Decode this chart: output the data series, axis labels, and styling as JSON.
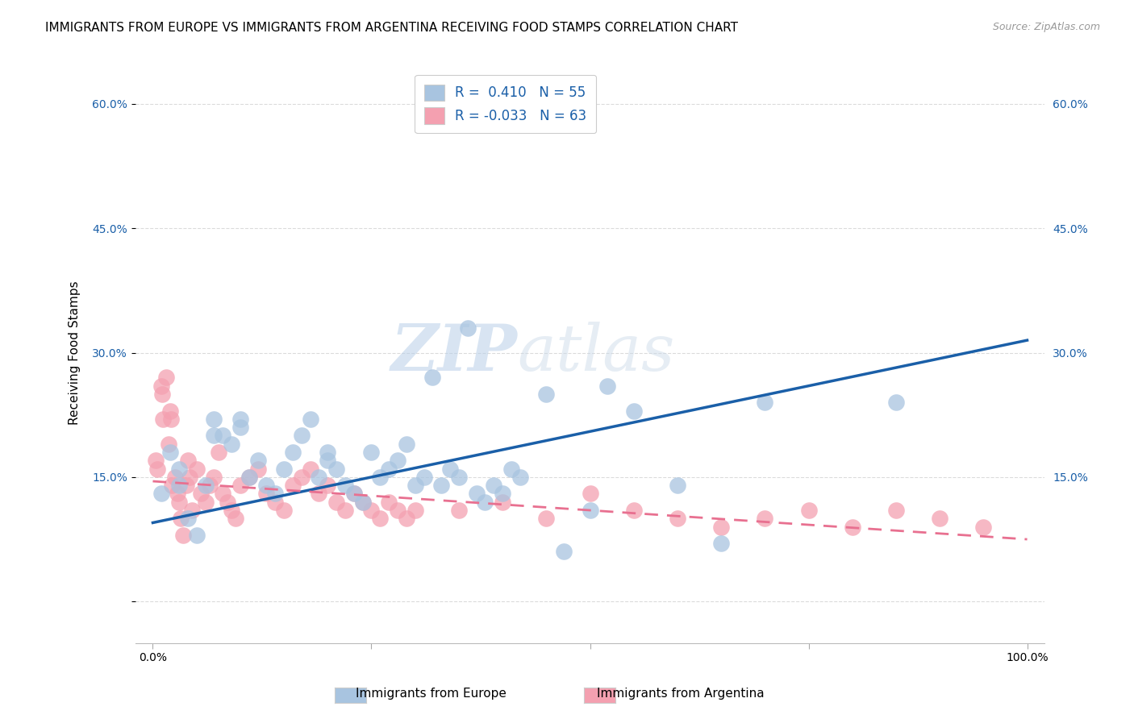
{
  "title": "IMMIGRANTS FROM EUROPE VS IMMIGRANTS FROM ARGENTINA RECEIVING FOOD STAMPS CORRELATION CHART",
  "source": "Source: ZipAtlas.com",
  "ylabel": "Receiving Food Stamps",
  "xlim": [
    -2,
    102
  ],
  "ylim": [
    -5,
    65
  ],
  "europe_R": 0.41,
  "europe_N": 55,
  "argentina_R": -0.033,
  "argentina_N": 63,
  "europe_color": "#a8c4e0",
  "argentina_color": "#f4a0b0",
  "europe_line_color": "#1a5fa8",
  "argentina_line_color": "#e87090",
  "background_color": "#ffffff",
  "grid_color": "#cccccc",
  "watermark_zip": "ZIP",
  "watermark_atlas": "atlas",
  "title_fontsize": 11,
  "source_fontsize": 9,
  "europe_scatter_x": [
    1,
    2,
    3,
    4,
    5,
    6,
    7,
    8,
    9,
    10,
    11,
    12,
    13,
    14,
    15,
    16,
    17,
    18,
    19,
    20,
    21,
    22,
    23,
    24,
    25,
    26,
    27,
    28,
    29,
    30,
    31,
    32,
    33,
    34,
    35,
    36,
    37,
    38,
    39,
    40,
    41,
    42,
    45,
    47,
    50,
    52,
    55,
    60,
    65,
    70,
    85,
    3,
    7,
    10,
    20
  ],
  "europe_scatter_y": [
    13,
    18,
    14,
    10,
    8,
    14,
    22,
    20,
    19,
    21,
    15,
    17,
    14,
    13,
    16,
    18,
    20,
    22,
    15,
    17,
    16,
    14,
    13,
    12,
    18,
    15,
    16,
    17,
    19,
    14,
    15,
    27,
    14,
    16,
    15,
    33,
    13,
    12,
    14,
    13,
    16,
    15,
    25,
    6,
    11,
    26,
    23,
    14,
    7,
    24,
    24,
    16,
    20,
    22,
    18
  ],
  "argentina_scatter_x": [
    0.5,
    1,
    1.2,
    1.5,
    1.8,
    2,
    2.2,
    2.5,
    2.8,
    3,
    3.2,
    3.5,
    3.8,
    4,
    4.2,
    4.5,
    5,
    5.5,
    6,
    6.5,
    7,
    7.5,
    8,
    8.5,
    9,
    9.5,
    10,
    11,
    12,
    13,
    14,
    15,
    16,
    17,
    18,
    19,
    20,
    21,
    22,
    23,
    24,
    25,
    26,
    27,
    28,
    29,
    30,
    35,
    40,
    45,
    50,
    55,
    60,
    65,
    70,
    75,
    80,
    85,
    90,
    95,
    0.3,
    1.1,
    2.1
  ],
  "argentina_scatter_y": [
    16,
    26,
    22,
    27,
    19,
    23,
    14,
    15,
    13,
    12,
    10,
    8,
    14,
    17,
    15,
    11,
    16,
    13,
    12,
    14,
    15,
    18,
    13,
    12,
    11,
    10,
    14,
    15,
    16,
    13,
    12,
    11,
    14,
    15,
    16,
    13,
    14,
    12,
    11,
    13,
    12,
    11,
    10,
    12,
    11,
    10,
    11,
    11,
    12,
    10,
    13,
    11,
    10,
    9,
    10,
    11,
    9,
    11,
    10,
    9,
    17,
    25,
    22
  ],
  "europe_line_x": [
    0,
    100
  ],
  "europe_line_y": [
    9.5,
    31.5
  ],
  "argentina_line_x": [
    0,
    100
  ],
  "argentina_line_y": [
    14.5,
    7.5
  ]
}
